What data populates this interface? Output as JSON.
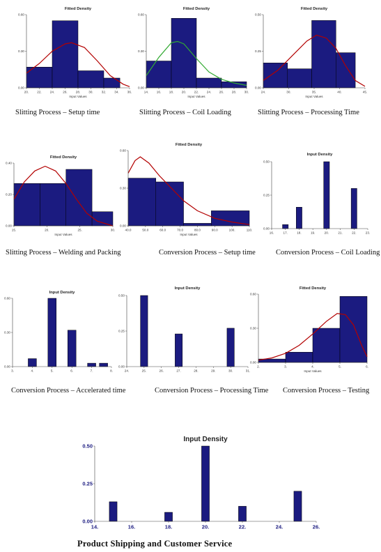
{
  "colors": {
    "bar": "#1b1b80",
    "bar_edge": "#000000",
    "red_curve": "#b30000",
    "green_curve": "#33aa33",
    "axis": "#444444"
  },
  "chart_data": [
    {
      "type": "bar",
      "title": "Fitted Density",
      "xlabel": "Input Values",
      "caption": "Slitting Process – Setup time",
      "xticks": [
        "20.",
        "22.",
        "24.",
        "26.",
        "28.",
        "30.",
        "32.",
        "34.",
        "36."
      ],
      "xlim": [
        20,
        36
      ],
      "yticks": [
        "0.60",
        "0.30",
        "0.00"
      ],
      "ytick_values": [
        0.6,
        0.3,
        0.0
      ],
      "ylim": [
        0,
        0.6
      ],
      "bars": [
        {
          "x0": 20,
          "x1": 24,
          "y": 0.17
        },
        {
          "x0": 24,
          "x1": 28,
          "y": 0.55
        },
        {
          "x0": 28,
          "x1": 32,
          "y": 0.14
        },
        {
          "x0": 32,
          "x1": 34.5,
          "y": 0.08
        }
      ],
      "curves": [
        {
          "color": "red",
          "points": [
            [
              20,
              0.12
            ],
            [
              22,
              0.2
            ],
            [
              24,
              0.3
            ],
            [
              26,
              0.36
            ],
            [
              27,
              0.37
            ],
            [
              29,
              0.33
            ],
            [
              31,
              0.22
            ],
            [
              33,
              0.1
            ],
            [
              35,
              0.03
            ],
            [
              36,
              0.01
            ]
          ]
        }
      ]
    },
    {
      "type": "bar",
      "title": "Fitted Density",
      "xlabel": "Input Values",
      "caption": "Slitting Process – Coil Loading",
      "xticks": [
        "14.",
        "16.",
        "18.",
        "20.",
        "22.",
        "24.",
        "26.",
        "28.",
        "30."
      ],
      "xlim": [
        14,
        30
      ],
      "yticks": [
        "0.60",
        "0.30",
        "0.00"
      ],
      "ytick_values": [
        0.6,
        0.3,
        0.0
      ],
      "ylim": [
        0,
        0.6
      ],
      "bars": [
        {
          "x0": 14,
          "x1": 18,
          "y": 0.22
        },
        {
          "x0": 18,
          "x1": 22,
          "y": 0.57
        },
        {
          "x0": 22,
          "x1": 26,
          "y": 0.08
        },
        {
          "x0": 26,
          "x1": 30,
          "y": 0.05
        }
      ],
      "curves": [
        {
          "color": "green",
          "points": [
            [
              14,
              0.1
            ],
            [
              16,
              0.25
            ],
            [
              18,
              0.37
            ],
            [
              19,
              0.38
            ],
            [
              20,
              0.36
            ],
            [
              22,
              0.24
            ],
            [
              24,
              0.13
            ],
            [
              26,
              0.07
            ],
            [
              28,
              0.04
            ],
            [
              30,
              0.02
            ]
          ]
        }
      ]
    },
    {
      "type": "bar",
      "title": "Fitted Density",
      "xlabel": "Input Values",
      "caption": "Slitting Process – Processing Time",
      "xticks": [
        "24.",
        "30.",
        "35.",
        "40.",
        "45."
      ],
      "xlim": [
        24,
        45
      ],
      "yticks": [
        "0.50",
        "0.25",
        "0.00"
      ],
      "ytick_values": [
        0.5,
        0.25,
        0.0
      ],
      "ylim": [
        0,
        0.5
      ],
      "bars": [
        {
          "x0": 24,
          "x1": 29,
          "y": 0.17
        },
        {
          "x0": 29,
          "x1": 34,
          "y": 0.13
        },
        {
          "x0": 34,
          "x1": 39,
          "y": 0.46
        },
        {
          "x0": 39,
          "x1": 43,
          "y": 0.24
        }
      ],
      "curves": [
        {
          "color": "red",
          "points": [
            [
              24,
              0.05
            ],
            [
              27,
              0.12
            ],
            [
              30,
              0.22
            ],
            [
              33,
              0.32
            ],
            [
              35,
              0.36
            ],
            [
              37,
              0.34
            ],
            [
              39,
              0.27
            ],
            [
              41,
              0.15
            ],
            [
              43,
              0.05
            ],
            [
              45,
              0.01
            ]
          ]
        }
      ]
    },
    {
      "type": "bar",
      "title": "Fitted Density",
      "xlabel": "Input Values",
      "caption": "Slitting Process – Welding and Packing",
      "xticks": [
        "15.",
        "20.",
        "25.",
        "30."
      ],
      "xlim": [
        15,
        34
      ],
      "yticks": [
        "0.40",
        "0.20",
        "0.00"
      ],
      "ytick_values": [
        0.4,
        0.2,
        0.0
      ],
      "ylim": [
        0,
        0.4
      ],
      "bars": [
        {
          "x0": 15,
          "x1": 20,
          "y": 0.27
        },
        {
          "x0": 20,
          "x1": 25,
          "y": 0.27
        },
        {
          "x0": 25,
          "x1": 30,
          "y": 0.36
        },
        {
          "x0": 30,
          "x1": 34,
          "y": 0.09
        }
      ],
      "curves": [
        {
          "color": "red",
          "points": [
            [
              15,
              0.17
            ],
            [
              17,
              0.28
            ],
            [
              19,
              0.35
            ],
            [
              21,
              0.38
            ],
            [
              23,
              0.35
            ],
            [
              25,
              0.27
            ],
            [
              27,
              0.17
            ],
            [
              29,
              0.08
            ],
            [
              31,
              0.03
            ],
            [
              34,
              0.0
            ]
          ]
        }
      ]
    },
    {
      "type": "bar",
      "title": "Fitted Density",
      "xlabel": "Input Values",
      "caption": "Conversion Process – Setup time",
      "xticks": [
        "40.0",
        "50.0",
        "60.0",
        "70.0",
        "80.0",
        "90.0",
        "100.",
        "110."
      ],
      "xlim": [
        40,
        110
      ],
      "yticks": [
        "0.60",
        "0.30",
        "0.00"
      ],
      "ytick_values": [
        0.6,
        0.3,
        0.0
      ],
      "ylim": [
        0,
        0.6
      ],
      "bars": [
        {
          "x0": 40,
          "x1": 56,
          "y": 0.38
        },
        {
          "x0": 56,
          "x1": 72,
          "y": 0.35
        },
        {
          "x0": 72,
          "x1": 88,
          "y": 0.02
        },
        {
          "x0": 88,
          "x1": 110,
          "y": 0.12
        }
      ],
      "curves": [
        {
          "color": "red",
          "points": [
            [
              40,
              0.42
            ],
            [
              44,
              0.52
            ],
            [
              47,
              0.55
            ],
            [
              52,
              0.5
            ],
            [
              58,
              0.4
            ],
            [
              65,
              0.3
            ],
            [
              72,
              0.2
            ],
            [
              80,
              0.12
            ],
            [
              90,
              0.06
            ],
            [
              100,
              0.03
            ],
            [
              110,
              0.01
            ]
          ]
        }
      ]
    },
    {
      "type": "bar",
      "title": "Input Density",
      "xlabel": "",
      "caption": "Conversion Process – Coil Loading",
      "xticks": [
        "16.",
        "17.",
        "18.",
        "19.",
        "20.",
        "21.",
        "22.",
        "23."
      ],
      "xlim": [
        16,
        23
      ],
      "yticks": [
        "0.50",
        "0.25",
        "0.00"
      ],
      "ytick_values": [
        0.5,
        0.25,
        0.0
      ],
      "ylim": [
        0,
        0.5
      ],
      "bars": [
        {
          "x": 17,
          "y": 0.03
        },
        {
          "x": 18,
          "y": 0.16
        },
        {
          "x": 20,
          "y": 0.5
        },
        {
          "x": 22,
          "y": 0.3
        }
      ],
      "curves": []
    },
    {
      "type": "bar",
      "title": "Input Density",
      "xlabel": "",
      "caption": "Conversion Process – Accelerated time",
      "xticks": [
        "3.",
        "4.",
        "5.",
        "6.",
        "7.",
        "8."
      ],
      "xlim": [
        3,
        8
      ],
      "yticks": [
        "0.60",
        "0.30",
        "0.00"
      ],
      "ytick_values": [
        0.6,
        0.3,
        0.0
      ],
      "ylim": [
        0,
        0.6
      ],
      "bars": [
        {
          "x": 4,
          "y": 0.07
        },
        {
          "x": 5,
          "y": 0.6
        },
        {
          "x": 6,
          "y": 0.32
        },
        {
          "x": 7,
          "y": 0.03
        },
        {
          "x": 7.6,
          "y": 0.03
        }
      ],
      "curves": []
    },
    {
      "type": "bar",
      "title": "Input Density",
      "xlabel": "",
      "caption": "Conversion Process – Processing Time",
      "xticks": [
        "24.",
        "25.",
        "26.",
        "27.",
        "28.",
        "29.",
        "30.",
        "31."
      ],
      "xlim": [
        24,
        31
      ],
      "yticks": [
        "0.50",
        "0.25",
        "0.00"
      ],
      "ytick_values": [
        0.5,
        0.25,
        0.0
      ],
      "ylim": [
        0,
        0.5
      ],
      "bars": [
        {
          "x": 25,
          "y": 0.5
        },
        {
          "x": 27,
          "y": 0.23
        },
        {
          "x": 30,
          "y": 0.27
        }
      ],
      "curves": []
    },
    {
      "type": "bar",
      "title": "Fitted Density",
      "xlabel": "Input Values",
      "caption": "Conversion Process – Testing",
      "xticks": [
        "2.",
        "3.",
        "4.",
        "5.",
        "6."
      ],
      "xlim": [
        2,
        6
      ],
      "yticks": [
        "0.60",
        "0.30",
        "0.00"
      ],
      "ytick_values": [
        0.6,
        0.3,
        0.0
      ],
      "ylim": [
        0,
        0.6
      ],
      "bars": [
        {
          "x0": 2,
          "x1": 3,
          "y": 0.03
        },
        {
          "x0": 3,
          "x1": 4,
          "y": 0.09
        },
        {
          "x0": 4,
          "x1": 5,
          "y": 0.3
        },
        {
          "x0": 5,
          "x1": 6,
          "y": 0.58
        }
      ],
      "curves": [
        {
          "color": "red",
          "points": [
            [
              2,
              0.02
            ],
            [
              2.5,
              0.04
            ],
            [
              3,
              0.08
            ],
            [
              3.5,
              0.15
            ],
            [
              4,
              0.25
            ],
            [
              4.5,
              0.36
            ],
            [
              4.9,
              0.43
            ],
            [
              5.2,
              0.42
            ],
            [
              5.5,
              0.33
            ],
            [
              5.8,
              0.15
            ],
            [
              6,
              0.05
            ]
          ]
        }
      ]
    },
    {
      "type": "bar",
      "title": "Input Density",
      "xlabel": "",
      "caption": "Product Shipping and Customer Service",
      "xticks": [
        "14.",
        "16.",
        "18.",
        "20.",
        "22.",
        "24.",
        "26."
      ],
      "xlim": [
        14,
        26
      ],
      "yticks": [
        "0.50",
        "0.25",
        "0.00"
      ],
      "ytick_values": [
        0.5,
        0.25,
        0.0
      ],
      "ylim": [
        0,
        0.5
      ],
      "bars": [
        {
          "x": 15,
          "y": 0.13
        },
        {
          "x": 18,
          "y": 0.06
        },
        {
          "x": 20,
          "y": 0.5
        },
        {
          "x": 22,
          "y": 0.1
        },
        {
          "x": 25,
          "y": 0.2
        }
      ],
      "curves": []
    }
  ]
}
